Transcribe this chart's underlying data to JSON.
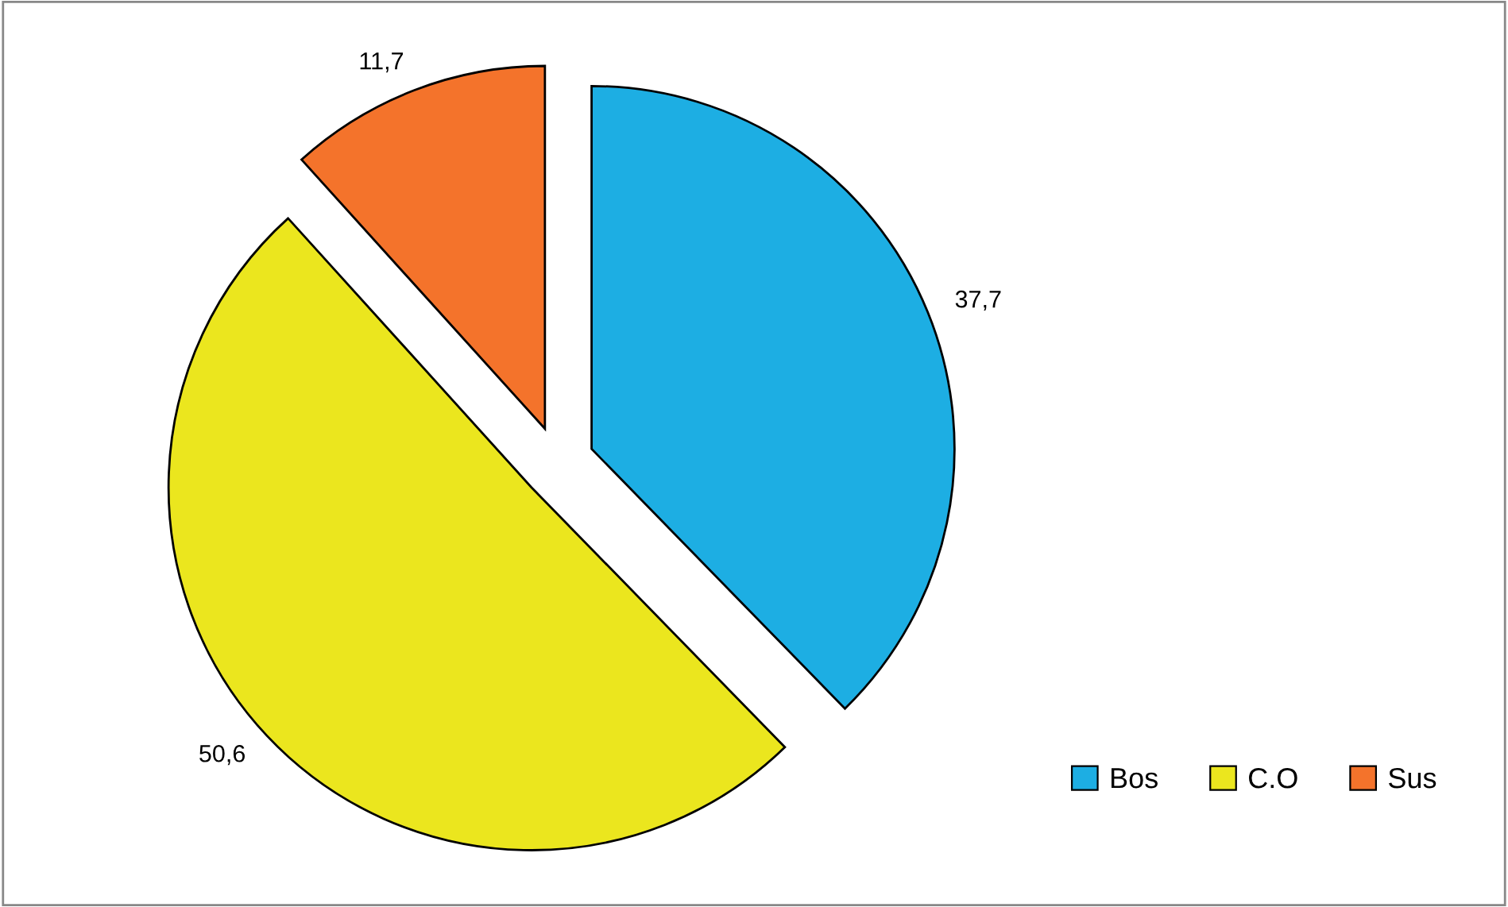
{
  "chart_data": {
    "type": "pie",
    "categories": [
      "Bos",
      "C.O",
      "Sus"
    ],
    "values": [
      37.7,
      50.6,
      11.7
    ],
    "value_labels": [
      "37,7",
      "50,6",
      "11,7"
    ],
    "colors": [
      "#1daee3",
      "#ebe61e",
      "#f4732b"
    ],
    "legend": "bottom right"
  }
}
